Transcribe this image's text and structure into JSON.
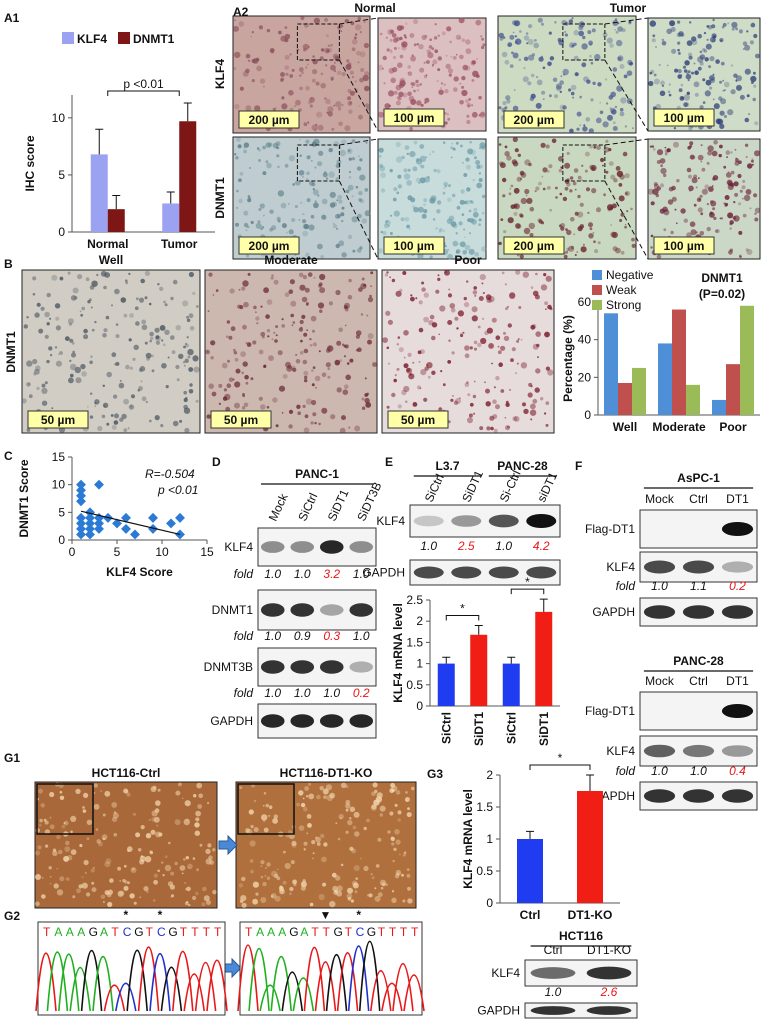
{
  "chart_data": [
    {
      "type": "bar",
      "ylabel": "IHC score",
      "categories": [
        "Normal",
        "Tumor"
      ],
      "series": [
        {
          "name": "KLF4",
          "color": "#9ca2f2",
          "values": [
            6.8,
            2.5
          ],
          "errors": [
            2.2,
            1.0
          ]
        },
        {
          "name": "DNMT1",
          "color": "#7e1616",
          "values": [
            2.0,
            9.7
          ],
          "errors": [
            1.2,
            1.6
          ]
        }
      ],
      "ylim": [
        0,
        12
      ],
      "yticks": [
        0,
        5,
        10
      ],
      "annotation": "p <0.01"
    },
    {
      "type": "bar",
      "title": "DNMT1",
      "subtitle": "(P=0.02)",
      "ylabel": "Percentage (%)",
      "categories": [
        "Well",
        "Moderate",
        "Poor"
      ],
      "series": [
        {
          "name": "Negative",
          "color": "#4f8fd8",
          "values": [
            54,
            38,
            8
          ]
        },
        {
          "name": "Weak",
          "color": "#c0504d",
          "values": [
            17,
            56,
            27
          ]
        },
        {
          "name": "Strong",
          "color": "#9bbb59",
          "values": [
            25,
            16,
            58
          ]
        }
      ],
      "ylim": [
        0,
        60
      ],
      "yticks": [
        0,
        20,
        40,
        60
      ]
    },
    {
      "type": "scatter",
      "xlabel": "KLF4 Score",
      "ylabel": "DNMT1 Score",
      "color": "#2b7bd6",
      "x": [
        1,
        1,
        1,
        1,
        1,
        1,
        1,
        1,
        2,
        2,
        2,
        2,
        2,
        3,
        3,
        3,
        3,
        4,
        5,
        6,
        6,
        7,
        9,
        9,
        11,
        12,
        12
      ],
      "y": [
        10,
        9,
        8,
        7,
        4,
        3,
        2,
        1,
        5,
        4,
        3,
        2,
        1,
        10,
        4,
        3,
        2,
        4,
        3,
        2,
        4,
        1,
        4,
        2,
        3,
        4,
        1
      ],
      "xlim": [
        0,
        15
      ],
      "ylim": [
        0,
        15
      ],
      "xticks": [
        0,
        5,
        10,
        15
      ],
      "yticks": [
        0,
        5,
        10,
        15
      ],
      "annotations": [
        "R=-0.504",
        "p <0.01"
      ],
      "fit_line": {
        "x": [
          1,
          12
        ],
        "y": [
          5.2,
          1.0
        ]
      }
    },
    {
      "type": "bar",
      "ylabel": "KLF4 mRNA level",
      "categories": [
        "SiCtrl",
        "SiDT1",
        "SiCtrl",
        "SiDT1"
      ],
      "values": [
        1.0,
        1.68,
        1.0,
        2.22
      ],
      "errors": [
        0.15,
        0.22,
        0.15,
        0.3
      ],
      "colors": [
        "#1f3cf0",
        "#f01e14",
        "#1f3cf0",
        "#f01e14"
      ],
      "ylim": [
        0,
        2.5
      ],
      "yticks": [
        0,
        0.5,
        1,
        1.5,
        2,
        2.5
      ],
      "annotations": [
        "*",
        "*"
      ]
    },
    {
      "type": "bar",
      "ylabel": "KLF4 mRNA level",
      "categories": [
        "Ctrl",
        "DT1-KO"
      ],
      "values": [
        1.0,
        1.75
      ],
      "errors": [
        0.12,
        0.25
      ],
      "colors": [
        "#1f3cf0",
        "#f01e14"
      ],
      "ylim": [
        0,
        2
      ],
      "yticks": [
        0,
        0.5,
        1,
        1.5,
        2
      ],
      "annotations": [
        "*"
      ]
    }
  ],
  "figure": {
    "panel_labels": [
      "A1",
      "A2",
      "B",
      "C",
      "D",
      "E",
      "F",
      "G1",
      "G2",
      "G3"
    ],
    "micrographs": {
      "a2_columns": [
        "Normal",
        "Tumor"
      ],
      "a2_rows": [
        "KLF4",
        "DNMT1"
      ],
      "a2_scale": [
        "200 µm",
        "100 µm",
        "200 µm",
        "100 µm",
        "200 µm",
        "100 µm",
        "200 µm",
        "100 µm"
      ],
      "b_columns": [
        "Well",
        "Moderate",
        "Poor"
      ],
      "b_row": "DNMT1",
      "b_scale": [
        "50 µm",
        "50 µm",
        "50 µm"
      ],
      "g1_titles": [
        "HCT116-Ctrl",
        "HCT116-DT1-KO"
      ],
      "g2_sequences": [
        "TAAAGATCGTCGTTTT",
        "TAAAGATTGTCGTTTT"
      ],
      "g2_marks": [
        [
          "*",
          "*"
        ],
        [
          "▼",
          "*"
        ]
      ]
    },
    "highlight_color": "#e8161b",
    "blots": [
      {
        "groups": [
          {
            "title": "PANC-1",
            "lanes": [
              "Mock",
              "SiCtrl",
              "SiDT1",
              "SiDT3B"
            ]
          }
        ],
        "rows": [
          {
            "label": "KLF4",
            "fold_label": "fold",
            "fold": [
              "1.0",
              "1.0",
              "3.2",
              "1.0"
            ],
            "highlight": [
              2
            ]
          },
          {
            "label": "DNMT1",
            "fold_label": "fold",
            "fold": [
              "1.0",
              "0.9",
              "0.3",
              "1.0"
            ],
            "highlight": [
              2
            ]
          },
          {
            "label": "DNMT3B",
            "fold_label": "fold",
            "fold": [
              "1.0",
              "1.0",
              "1.0",
              "0.2"
            ],
            "highlight": [
              3
            ]
          },
          {
            "label": "GAPDH"
          }
        ]
      },
      {
        "groups": [
          {
            "title": "L3.7",
            "lanes": [
              "SiCtrl",
              "SiDT1"
            ]
          },
          {
            "title": "PANC-28",
            "lanes": [
              "Si-Ctrl",
              "siDT1"
            ]
          }
        ],
        "rows": [
          {
            "label": "KLF4",
            "fold": [
              "1.0",
              "2.5",
              "1.0",
              "4.2"
            ],
            "highlight": [
              1,
              3
            ]
          },
          {
            "label": "GAPDH"
          }
        ]
      },
      {
        "groups": [
          {
            "title": "AsPC-1",
            "lanes": [
              "Mock",
              "Ctrl",
              "DT1"
            ]
          }
        ],
        "rows": [
          {
            "label": "Flag-DT1"
          },
          {
            "label": "KLF4",
            "fold_label": "fold",
            "fold": [
              "1.0",
              "1.1",
              "0.2"
            ],
            "highlight": [
              2
            ]
          },
          {
            "label": "GAPDH"
          }
        ]
      },
      {
        "groups": [
          {
            "title": "PANC-28",
            "lanes": [
              "Mock",
              "Ctrl",
              "DT1"
            ]
          }
        ],
        "rows": [
          {
            "label": "Flag-DT1"
          },
          {
            "label": "KLF4",
            "fold_label": "fold",
            "fold": [
              "1.0",
              "1.0",
              "0.4"
            ],
            "highlight": [
              2
            ]
          },
          {
            "label": "GAPDH"
          }
        ]
      },
      {
        "groups": [
          {
            "title": "HCT116",
            "lanes": [
              "Ctrl",
              "DT1-KO"
            ]
          }
        ],
        "rows": [
          {
            "label": "KLF4",
            "fold": [
              "1.0",
              "2.6"
            ],
            "highlight": [
              1
            ]
          },
          {
            "label": "GAPDH"
          }
        ]
      }
    ]
  }
}
